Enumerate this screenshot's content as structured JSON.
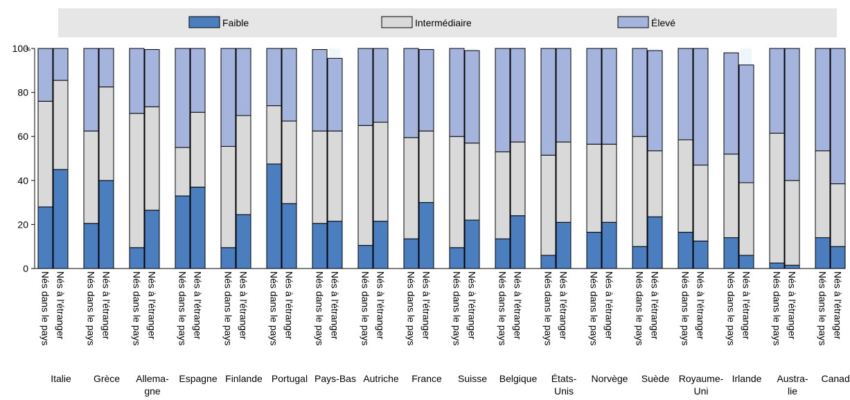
{
  "colors": {
    "faible": "#4a7ebf",
    "intermediaire": "#d9d9d9",
    "eleve": "#a5b4dc",
    "legend_bg": "#e6e6e6",
    "band": "#eef6fa"
  },
  "chart_data": {
    "type": "bar",
    "stacked": true,
    "legend_position": "top",
    "grid": false,
    "ylim": [
      0,
      100
    ],
    "yticks": [
      "0",
      "20",
      "40",
      "60",
      "80",
      "100"
    ],
    "y_unit": "%",
    "bar_labels": [
      "Nés dans le pays",
      "Nés à l'étranger"
    ],
    "series_names": [
      "Faible",
      "Intermédiaire",
      "Élevé"
    ],
    "groups": [
      {
        "label": [
          "Italie"
        ],
        "bars": [
          [
            28,
            48,
            24
          ],
          [
            45,
            40.5,
            14.5
          ]
        ]
      },
      {
        "label": [
          "Grèce"
        ],
        "bars": [
          [
            20.5,
            42,
            37.5
          ],
          [
            40,
            42.5,
            17.5
          ]
        ]
      },
      {
        "label": [
          "Allema-",
          "gne"
        ],
        "bars": [
          [
            9.5,
            61,
            29.5
          ],
          [
            26.5,
            47,
            26
          ]
        ]
      },
      {
        "label": [
          "Espagne"
        ],
        "bars": [
          [
            33,
            22,
            45
          ],
          [
            37,
            34,
            29
          ]
        ]
      },
      {
        "label": [
          "Finlande"
        ],
        "bars": [
          [
            9.5,
            46,
            44.5
          ],
          [
            24.5,
            45,
            30.5
          ]
        ]
      },
      {
        "label": [
          "Portugal"
        ],
        "bars": [
          [
            47.5,
            26.5,
            26
          ],
          [
            29.5,
            37.5,
            33
          ]
        ]
      },
      {
        "label": [
          "Pays-Bas"
        ],
        "bars": [
          [
            20.5,
            42,
            37
          ],
          [
            21.5,
            41,
            33
          ]
        ]
      },
      {
        "label": [
          "Autriche"
        ],
        "bars": [
          [
            10.5,
            54.5,
            35
          ],
          [
            21.5,
            45,
            33.5
          ]
        ]
      },
      {
        "label": [
          "France"
        ],
        "bars": [
          [
            13.5,
            46,
            40.5
          ],
          [
            30,
            32.5,
            37
          ]
        ]
      },
      {
        "label": [
          "Suisse"
        ],
        "bars": [
          [
            9.5,
            50.5,
            40
          ],
          [
            22,
            35,
            42
          ]
        ]
      },
      {
        "label": [
          "Belgique"
        ],
        "bars": [
          [
            13.5,
            39.5,
            47
          ],
          [
            24,
            33.5,
            42.5
          ]
        ]
      },
      {
        "label": [
          "États-",
          "Unis"
        ],
        "bars": [
          [
            6,
            45.5,
            48.5
          ],
          [
            21,
            36.5,
            42.5
          ]
        ]
      },
      {
        "label": [
          "Norvège"
        ],
        "bars": [
          [
            16.5,
            40,
            43.5
          ],
          [
            21,
            35.5,
            43.5
          ]
        ]
      },
      {
        "label": [
          "Suède"
        ],
        "bars": [
          [
            10,
            50,
            40
          ],
          [
            23.5,
            30,
            45.5
          ]
        ]
      },
      {
        "label": [
          "Royaume-",
          "Uni"
        ],
        "bars": [
          [
            16.5,
            42,
            41.5
          ],
          [
            12.5,
            34.5,
            53
          ]
        ]
      },
      {
        "label": [
          "Irlande"
        ],
        "bars": [
          [
            14,
            38,
            46
          ],
          [
            6,
            33,
            53.5
          ]
        ]
      },
      {
        "label": [
          "Austra-",
          "lie"
        ],
        "bars": [
          [
            2.5,
            59,
            38.5
          ],
          [
            1.5,
            38.5,
            60
          ]
        ]
      },
      {
        "label": [
          "Canada"
        ],
        "bars": [
          [
            14,
            39.5,
            46.5
          ],
          [
            10,
            28.5,
            61.5
          ]
        ]
      }
    ]
  }
}
